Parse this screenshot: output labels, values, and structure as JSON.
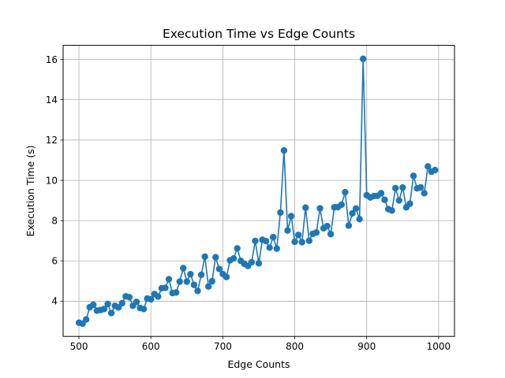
{
  "chart_data": {
    "type": "line",
    "title": "Execution Time vs Edge Counts",
    "xlabel": "Edge Counts",
    "ylabel": "Execution Time (s)",
    "xlim": [
      478,
      1022
    ],
    "ylim": [
      2.25,
      16.7
    ],
    "xticks": [
      500,
      600,
      700,
      800,
      900,
      1000
    ],
    "yticks": [
      4,
      6,
      8,
      10,
      12,
      14,
      16
    ],
    "grid": true,
    "legend": "none",
    "series": [
      {
        "color": "#1f77b4",
        "marker": "circle",
        "x": [
          500,
          505,
          510,
          515,
          520,
          525,
          530,
          535,
          540,
          545,
          550,
          555,
          560,
          565,
          570,
          575,
          580,
          585,
          590,
          595,
          600,
          605,
          610,
          615,
          620,
          625,
          630,
          635,
          640,
          645,
          650,
          655,
          660,
          665,
          670,
          675,
          680,
          685,
          690,
          695,
          700,
          705,
          710,
          715,
          720,
          725,
          730,
          735,
          740,
          745,
          750,
          755,
          760,
          765,
          770,
          775,
          780,
          785,
          790,
          795,
          800,
          805,
          810,
          815,
          820,
          825,
          830,
          835,
          840,
          845,
          850,
          855,
          860,
          865,
          870,
          875,
          880,
          885,
          890,
          895,
          900,
          905,
          910,
          915,
          920,
          925,
          930,
          935,
          940,
          945,
          950,
          955,
          960,
          965,
          970,
          975,
          980,
          985,
          990,
          995
        ],
        "y": [
          2.93,
          2.88,
          3.09,
          3.7,
          3.82,
          3.53,
          3.56,
          3.61,
          3.86,
          3.41,
          3.77,
          3.69,
          3.9,
          4.24,
          4.2,
          3.77,
          3.96,
          3.66,
          3.61,
          4.13,
          4.09,
          4.35,
          4.23,
          4.64,
          4.66,
          5.09,
          4.4,
          4.43,
          4.97,
          5.64,
          4.97,
          5.34,
          4.81,
          4.51,
          5.31,
          6.21,
          4.73,
          4.99,
          6.18,
          5.6,
          5.35,
          5.2,
          6.03,
          6.12,
          6.62,
          6.0,
          5.85,
          5.75,
          5.93,
          6.99,
          5.88,
          7.05,
          6.98,
          6.66,
          7.18,
          6.61,
          8.4,
          11.48,
          7.51,
          8.22,
          6.95,
          7.29,
          6.93,
          8.64,
          7.0,
          7.34,
          7.41,
          8.61,
          7.62,
          7.73,
          7.33,
          8.66,
          8.67,
          8.79,
          9.41,
          7.75,
          8.36,
          8.6,
          8.07,
          16.03,
          9.26,
          9.15,
          9.22,
          9.23,
          9.36,
          9.03,
          8.57,
          8.5,
          9.61,
          9.0,
          9.64,
          8.66,
          8.84,
          10.22,
          9.6,
          9.65,
          9.36,
          10.69,
          10.43,
          10.51
        ]
      }
    ]
  }
}
